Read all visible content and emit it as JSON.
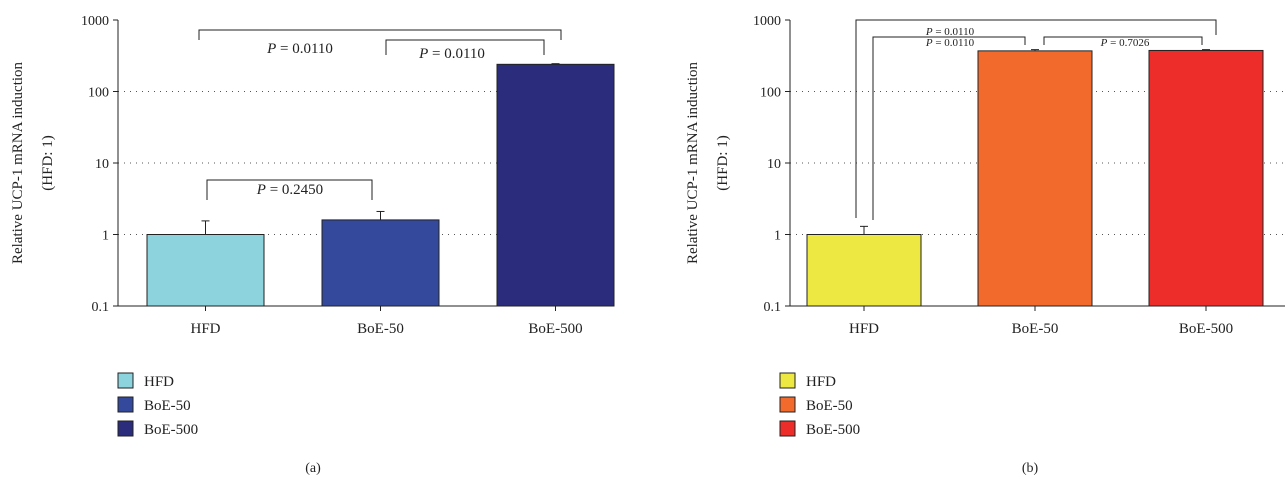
{
  "chart_data": [
    {
      "type": "bar",
      "panel_label": "(a)",
      "categories": [
        "HFD",
        "BoE-50",
        "BoE-500"
      ],
      "values": [
        1.0,
        1.6,
        240
      ],
      "error_upper": [
        1.55,
        2.1,
        245
      ],
      "colors": [
        "#8CD3DE",
        "#34499C",
        "#2B2C7C"
      ],
      "ylabel_line1": "Relative UCP-1 mRNA induction",
      "ylabel_line2": "(HFD: 1)",
      "yscale": "log",
      "ylim": [
        0.1,
        1000
      ],
      "yticks": [
        "0.1",
        "1",
        "10",
        "100",
        "1000"
      ],
      "grid": "dotted horizontal",
      "legend": [
        "HFD",
        "BoE-50",
        "BoE-500"
      ],
      "legend_position": "bottom-left",
      "comparisons": [
        {
          "from": 0,
          "to": 2,
          "label": "P = 0.0110"
        },
        {
          "from": 1,
          "to": 2,
          "label": "P = 0.0110"
        },
        {
          "from": 0,
          "to": 1,
          "label": "P = 0.2450"
        }
      ]
    },
    {
      "type": "bar",
      "panel_label": "(b)",
      "categories": [
        "HFD",
        "BoE-50",
        "BoE-500"
      ],
      "values": [
        1.0,
        370,
        375
      ],
      "error_upper": [
        1.3,
        385,
        385
      ],
      "colors": [
        "#EEE843",
        "#F26B2C",
        "#EC2D2A"
      ],
      "ylabel_line1": "Relative UCP-1 mRNA induction",
      "ylabel_line2": "(HFD: 1)",
      "yscale": "log",
      "ylim": [
        0.1,
        1000
      ],
      "yticks": [
        "0.1",
        "1",
        "10",
        "100",
        "1000"
      ],
      "grid": "dotted horizontal",
      "legend": [
        "HFD",
        "BoE-50",
        "BoE-500"
      ],
      "legend_position": "bottom-left",
      "comparisons": [
        {
          "from": 0,
          "to": 2,
          "label": "P = 0.0110"
        },
        {
          "from": 0,
          "to": 1,
          "label": "P = 0.0110"
        },
        {
          "from": 1,
          "to": 2,
          "label": "P = 0.7026"
        }
      ]
    }
  ]
}
